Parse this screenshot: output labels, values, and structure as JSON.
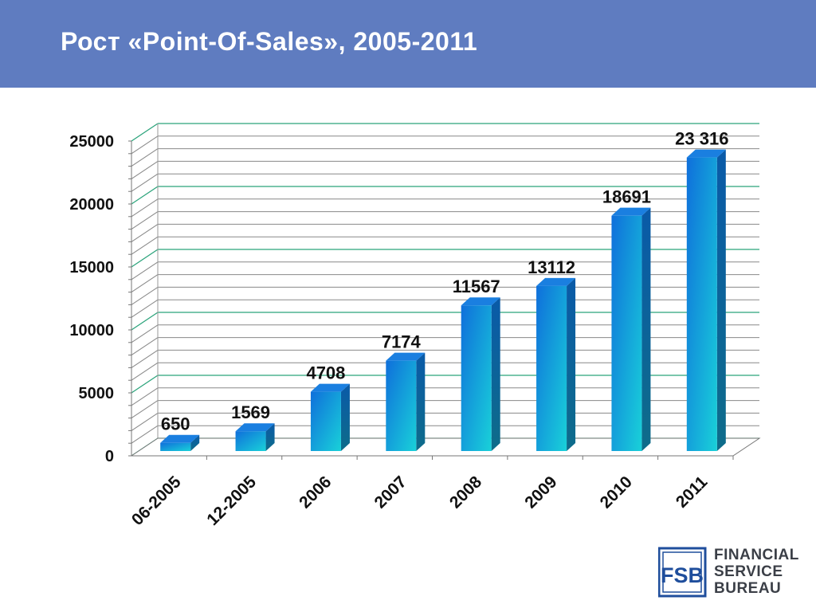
{
  "header": {
    "title": "Рост «Point-Of-Sales», 2005-2011"
  },
  "colors": {
    "header_bg": "#5f7cc0",
    "bar_front_top": "#0f6fdb",
    "bar_front_bottom": "#19d1d9",
    "bar_side": "#0e6c8a",
    "gridline_major": "#2aa37a",
    "gridline_minor": "#888888"
  },
  "chart_data": {
    "type": "bar",
    "categories": [
      "06-2005",
      "12-2005",
      "2006",
      "2007",
      "2008",
      "2009",
      "2010",
      "2011"
    ],
    "values": [
      650,
      1569,
      4708,
      7174,
      11567,
      13112,
      18691,
      23316
    ],
    "data_labels": [
      "650",
      "1569",
      "4708",
      "7174",
      "11567",
      "13112",
      "18691",
      "23 316"
    ],
    "y_ticks": [
      "0",
      "5000",
      "10000",
      "15000",
      "20000",
      "25000"
    ],
    "ylim": [
      0,
      25000
    ],
    "grid": true,
    "legend": "none",
    "title": "",
    "xlabel": "",
    "ylabel": ""
  },
  "logo": {
    "mark": "FSB",
    "line1": "FINANCIAL",
    "line2": "SERVICE",
    "line3": "BUREAU"
  }
}
